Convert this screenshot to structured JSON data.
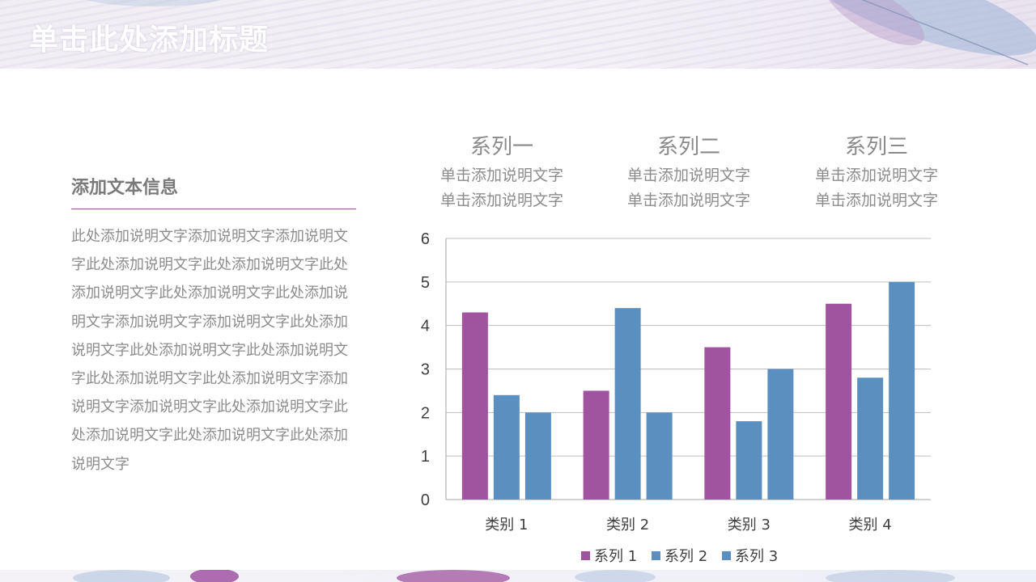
{
  "slide": {
    "title": "单击此处添加标题"
  },
  "left_panel": {
    "heading": "添加文本信息",
    "body": "此处添加说明文字添加说明文字添加说明文字此处添加说明文字此处添加说明文字此处添加说明文字此处添加说明文字此处添加说明文字添加说明文字添加说明文字此处添加说明文字此处添加说明文字此处添加说明文字此处添加说明文字此处添加说明文字添加说明文字添加说明文字此处添加说明文字此处添加说明文字此处添加说明文字此处添加说明文字"
  },
  "series_descriptions": [
    {
      "name": "系列一",
      "line1": "单击添加说明文字",
      "line2": "单击添加说明文字"
    },
    {
      "name": "系列二",
      "line1": "单击添加说明文字",
      "line2": "单击添加说明文字"
    },
    {
      "name": "系列三",
      "line1": "单击添加说明文字",
      "line2": "单击添加说明文字"
    }
  ],
  "colors": {
    "series1": "#a0539e",
    "series2": "#5b8fc0",
    "series3": "#5b8fc0",
    "accent": "#8a5a90"
  },
  "chart_data": {
    "type": "bar",
    "categories": [
      "类别 1",
      "类别 2",
      "类别 3",
      "类别 4"
    ],
    "series": [
      {
        "name": "系列 1",
        "values": [
          4.3,
          2.5,
          3.5,
          4.5
        ]
      },
      {
        "name": "系列 2",
        "values": [
          2.4,
          4.4,
          1.8,
          2.8
        ]
      },
      {
        "name": "系列 3",
        "values": [
          2.0,
          2.0,
          3.0,
          5.0
        ]
      }
    ],
    "ylim": [
      0,
      6
    ],
    "yticks": [
      "0",
      "1",
      "2",
      "3",
      "4",
      "5",
      "6"
    ],
    "grid": true,
    "legend": "bottom"
  }
}
